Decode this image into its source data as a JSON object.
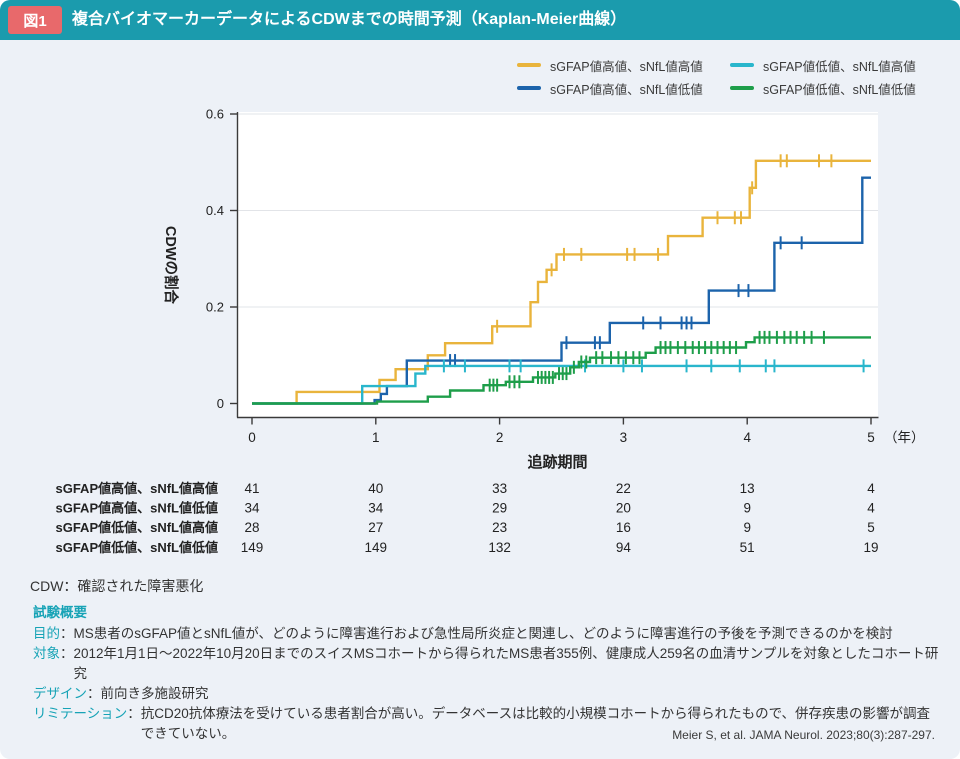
{
  "header": {
    "badge": "図1",
    "title": "複合バイオマーカーデータによるCDWまでの時間予測（Kaplan-Meier曲線）"
  },
  "theme": {
    "header_bg": "#1B9BAD",
    "badge_bg": "#E8696B",
    "page_bg": "#EDF1F7",
    "accent_teal": "#17A3B6",
    "axis_color": "#3A3A3A",
    "grid_color": "#E2E4E8"
  },
  "legend": {
    "items": [
      {
        "name": "sGFAP値高値、sNfL値高値",
        "color": "#E9B43C"
      },
      {
        "name": "sGFAP値低値、sNfL値高値",
        "color": "#29B6CC"
      },
      {
        "name": "sGFAP値高値、sNfL値低値",
        "color": "#1C63AB"
      },
      {
        "name": "sGFAP値低値、sNfL値低値",
        "color": "#1E9E4A"
      }
    ]
  },
  "chart_data": {
    "type": "line",
    "subtype": "kaplan-meier-step",
    "title": "複合バイオマーカーデータによるCDWまでの時間予測（Kaplan-Meier曲線）",
    "xlabel": "追跡期間",
    "ylabel": "CDWの割合",
    "x_unit": "（年）",
    "xlim": [
      0,
      5
    ],
    "ylim": [
      0,
      0.6
    ],
    "xticks": [
      "0",
      "1",
      "2",
      "3",
      "4",
      "5"
    ],
    "yticks": [
      "0",
      "0.2",
      "0.4",
      "0.6"
    ],
    "grid": "horizontal",
    "legend_position": "top-right",
    "series": [
      {
        "name": "sGFAP値高値、sNfL値高値",
        "color": "#E9B43C",
        "steps": [
          [
            0,
            0
          ],
          [
            0.36,
            0.024
          ],
          [
            1.03,
            0.049
          ],
          [
            1.16,
            0.071
          ],
          [
            1.42,
            0.1
          ],
          [
            1.56,
            0.125
          ],
          [
            1.94,
            0.16
          ],
          [
            2.25,
            0.21
          ],
          [
            2.31,
            0.252
          ],
          [
            2.38,
            0.277
          ],
          [
            2.46,
            0.309
          ],
          [
            3.36,
            0.347
          ],
          [
            3.64,
            0.385
          ],
          [
            4.02,
            0.447
          ],
          [
            4.07,
            0.503
          ],
          [
            5,
            0.503
          ]
        ],
        "censors": [
          [
            1.98,
            0.16
          ],
          [
            2.42,
            0.277
          ],
          [
            2.52,
            0.309
          ],
          [
            2.66,
            0.309
          ],
          [
            3.03,
            0.309
          ],
          [
            3.09,
            0.309
          ],
          [
            3.28,
            0.309
          ],
          [
            3.76,
            0.385
          ],
          [
            3.9,
            0.385
          ],
          [
            3.95,
            0.385
          ],
          [
            4.04,
            0.447
          ],
          [
            4.27,
            0.503
          ],
          [
            4.32,
            0.503
          ],
          [
            4.58,
            0.503
          ],
          [
            4.68,
            0.503
          ]
        ]
      },
      {
        "name": "sGFAP値高値、sNfL値低値",
        "color": "#1C63AB",
        "steps": [
          [
            0,
            0
          ],
          [
            0.99,
            0.007
          ],
          [
            1.04,
            0.02
          ],
          [
            1.09,
            0.036
          ],
          [
            1.25,
            0.089
          ],
          [
            2.5,
            0.126
          ],
          [
            2.89,
            0.167
          ],
          [
            3.69,
            0.234
          ],
          [
            4.22,
            0.333
          ],
          [
            4.93,
            0.468
          ],
          [
            5,
            0.468
          ]
        ],
        "censors": [
          [
            1.6,
            0.089
          ],
          [
            1.64,
            0.089
          ],
          [
            2.54,
            0.126
          ],
          [
            2.77,
            0.126
          ],
          [
            2.81,
            0.126
          ],
          [
            3.16,
            0.167
          ],
          [
            3.3,
            0.167
          ],
          [
            3.47,
            0.167
          ],
          [
            3.51,
            0.167
          ],
          [
            3.55,
            0.167
          ],
          [
            3.93,
            0.234
          ],
          [
            4.01,
            0.234
          ],
          [
            4.27,
            0.333
          ],
          [
            4.44,
            0.333
          ]
        ]
      },
      {
        "name": "sGFAP値低値、sNfL値高値",
        "color": "#29B6CC",
        "steps": [
          [
            0,
            0
          ],
          [
            0.89,
            0.036
          ],
          [
            1.32,
            0.062
          ],
          [
            1.4,
            0.078
          ],
          [
            5,
            0.078
          ]
        ],
        "censors": [
          [
            1.55,
            0.078
          ],
          [
            1.72,
            0.078
          ],
          [
            2.08,
            0.078
          ],
          [
            2.17,
            0.078
          ],
          [
            2.69,
            0.078
          ],
          [
            3.0,
            0.078
          ],
          [
            3.15,
            0.078
          ],
          [
            3.51,
            0.078
          ],
          [
            3.71,
            0.078
          ],
          [
            3.94,
            0.078
          ],
          [
            4.15,
            0.078
          ],
          [
            4.22,
            0.078
          ],
          [
            4.94,
            0.078
          ]
        ]
      },
      {
        "name": "sGFAP値低値、sNfL値低値",
        "color": "#1E9E4A",
        "steps": [
          [
            0,
            0
          ],
          [
            1.01,
            0.004
          ],
          [
            1.42,
            0.014
          ],
          [
            1.6,
            0.027
          ],
          [
            1.87,
            0.038
          ],
          [
            2.05,
            0.045
          ],
          [
            2.27,
            0.054
          ],
          [
            2.45,
            0.062
          ],
          [
            2.57,
            0.075
          ],
          [
            2.64,
            0.086
          ],
          [
            2.73,
            0.095
          ],
          [
            3.18,
            0.105
          ],
          [
            3.26,
            0.116
          ],
          [
            3.99,
            0.127
          ],
          [
            4.06,
            0.137
          ],
          [
            5,
            0.137
          ]
        ],
        "censors": [
          [
            1.92,
            0.038
          ],
          [
            1.95,
            0.038
          ],
          [
            1.98,
            0.038
          ],
          [
            2.08,
            0.045
          ],
          [
            2.12,
            0.045
          ],
          [
            2.16,
            0.045
          ],
          [
            2.31,
            0.054
          ],
          [
            2.34,
            0.054
          ],
          [
            2.37,
            0.054
          ],
          [
            2.4,
            0.054
          ],
          [
            2.43,
            0.054
          ],
          [
            2.48,
            0.062
          ],
          [
            2.51,
            0.062
          ],
          [
            2.54,
            0.062
          ],
          [
            2.6,
            0.075
          ],
          [
            2.66,
            0.086
          ],
          [
            2.7,
            0.086
          ],
          [
            2.78,
            0.095
          ],
          [
            2.83,
            0.095
          ],
          [
            2.9,
            0.095
          ],
          [
            2.96,
            0.095
          ],
          [
            3.02,
            0.095
          ],
          [
            3.08,
            0.095
          ],
          [
            3.13,
            0.095
          ],
          [
            3.3,
            0.116
          ],
          [
            3.34,
            0.116
          ],
          [
            3.38,
            0.116
          ],
          [
            3.44,
            0.116
          ],
          [
            3.5,
            0.116
          ],
          [
            3.56,
            0.116
          ],
          [
            3.61,
            0.116
          ],
          [
            3.66,
            0.116
          ],
          [
            3.71,
            0.116
          ],
          [
            3.76,
            0.116
          ],
          [
            3.81,
            0.116
          ],
          [
            3.86,
            0.116
          ],
          [
            3.91,
            0.116
          ],
          [
            4.1,
            0.137
          ],
          [
            4.14,
            0.137
          ],
          [
            4.18,
            0.137
          ],
          [
            4.24,
            0.137
          ],
          [
            4.3,
            0.137
          ],
          [
            4.35,
            0.137
          ],
          [
            4.4,
            0.137
          ],
          [
            4.46,
            0.137
          ],
          [
            4.52,
            0.137
          ],
          [
            4.62,
            0.137
          ]
        ]
      }
    ],
    "at_risk": {
      "times": [
        0,
        1,
        2,
        3,
        4,
        5
      ],
      "rows": [
        {
          "label": "sGFAP値高値、sNfL値高値",
          "values": [
            41,
            40,
            33,
            22,
            13,
            4
          ]
        },
        {
          "label": "sGFAP値高値、sNfL値低値",
          "values": [
            34,
            34,
            29,
            20,
            9,
            4
          ]
        },
        {
          "label": "sGFAP値低値、sNfL値高値",
          "values": [
            28,
            27,
            23,
            16,
            9,
            5
          ]
        },
        {
          "label": "sGFAP値低値、sNfL値低値",
          "values": [
            149,
            149,
            132,
            94,
            51,
            19
          ]
        }
      ]
    }
  },
  "annotations": {
    "cdw_note": "CDW：確認された障害悪化",
    "overview_heading": "試験概要",
    "colon": "：",
    "items": [
      {
        "label": "目的",
        "text": "MS患者のsGFAP値とsNfL値が、どのように障害進行および急性局所炎症と関連し、どのように障害進行の予後を予測できるのかを検討"
      },
      {
        "label": "対象",
        "text": "2012年1月1日～2022年10月20日までのスイスMSコホートから得られたMS患者355例、健康成人259名の血清サンプルを対象としたコホート研究"
      },
      {
        "label": "デザイン",
        "text": "前向き多施設研究"
      },
      {
        "label": "リミテーション",
        "text": "抗CD20抗体療法を受けている患者割合が高い。データベースは比較的小規模コホートから得られたもので、併存疾患の影響が調査できていない。"
      }
    ],
    "citation": "Meier S, et al. JAMA Neurol. 2023;80(3):287-297."
  }
}
